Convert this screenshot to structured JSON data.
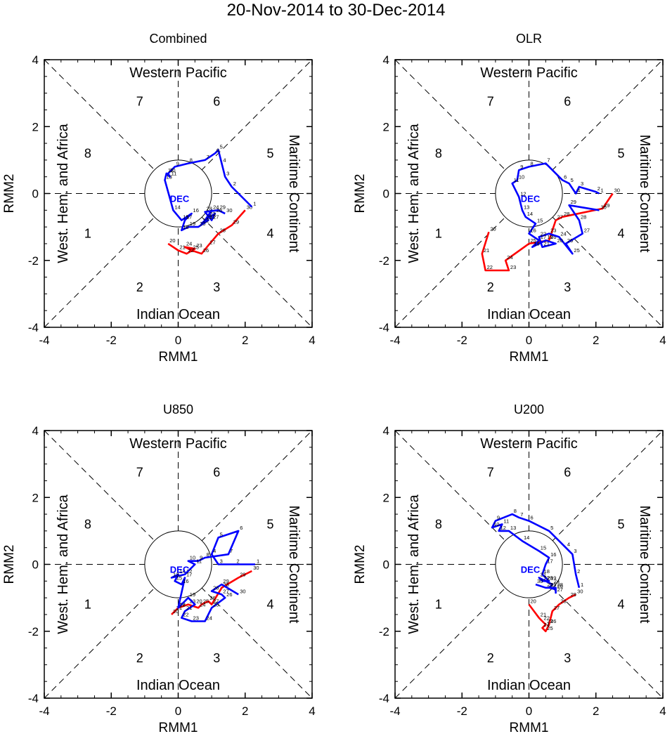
{
  "title": "20-Nov-2014 to 30-Dec-2014",
  "chart_data": [
    {
      "type": "line",
      "title": "Combined",
      "xlabel": "RMM1",
      "ylabel": "RMM2",
      "xlim": [
        -4,
        4
      ],
      "ylim": [
        -4,
        4
      ],
      "ticks": [
        "-4",
        "-2",
        "0",
        "2",
        "4"
      ],
      "regions": {
        "top": "Western Pacific",
        "bottom": "Indian Ocean",
        "left": "West. Hem. and Africa",
        "right": "Maritime Continent"
      },
      "phases": [
        "1",
        "2",
        "3",
        "4",
        "5",
        "6",
        "7",
        "8"
      ],
      "month_label": "DEC",
      "series": [
        {
          "name": "Nov",
          "color": "#ff0000",
          "days": [
            "20",
            "21",
            "22",
            "23",
            "24",
            "25",
            "26",
            "27",
            "28",
            "29",
            "30"
          ],
          "x": [
            -0.3,
            0.0,
            0.25,
            0.5,
            0.2,
            0.4,
            0.7,
            0.9,
            1.2,
            1.6,
            2.0
          ],
          "y": [
            -1.5,
            -1.7,
            -1.8,
            -1.65,
            -1.6,
            -1.7,
            -1.8,
            -1.55,
            -1.2,
            -0.95,
            -0.5
          ]
        },
        {
          "name": "Dec",
          "color": "#0000ff",
          "days": [
            "1",
            "2",
            "3",
            "4",
            "5",
            "6",
            "7",
            "8",
            "9",
            "10",
            "11",
            "12",
            "13",
            "14",
            "15",
            "16",
            "17",
            "18",
            "19",
            "20",
            "21",
            "22",
            "23",
            "24",
            "25",
            "26",
            "27",
            "28",
            "29",
            "30"
          ],
          "x": [
            2.2,
            1.6,
            1.4,
            1.3,
            1.2,
            1.1,
            0.8,
            0.3,
            -0.1,
            -0.3,
            -0.25,
            -0.35,
            -0.4,
            -0.15,
            0.1,
            0.4,
            0.2,
            0.1,
            0.3,
            0.6,
            0.9,
            0.7,
            0.9,
            1.0,
            0.8,
            1.1,
            1.0,
            0.8,
            1.2,
            1.4
          ],
          "y": [
            -0.4,
            0.2,
            0.5,
            0.9,
            1.3,
            1.2,
            1.0,
            0.9,
            0.8,
            0.6,
            0.5,
            0.6,
            0.4,
            -0.5,
            -0.8,
            -0.6,
            -0.8,
            -1.1,
            -1.0,
            -1.0,
            -0.8,
            -0.9,
            -0.7,
            -0.5,
            -0.8,
            -0.6,
            -0.8,
            -0.55,
            -0.5,
            -0.6
          ]
        }
      ]
    },
    {
      "type": "line",
      "title": "OLR",
      "xlabel": "RMM1",
      "ylabel": "RMM2",
      "xlim": [
        -4,
        4
      ],
      "ylim": [
        -4,
        4
      ],
      "ticks": [
        "-4",
        "-2",
        "0",
        "2",
        "4"
      ],
      "regions": {
        "top": "Western Pacific",
        "bottom": "Indian Ocean",
        "left": "West. Hem. and Africa",
        "right": "Maritime Continent"
      },
      "phases": [
        "1",
        "2",
        "3",
        "4",
        "5",
        "6",
        "7",
        "8"
      ],
      "month_label": "DEC",
      "series": [
        {
          "name": "Nov",
          "color": "#ff0000",
          "days": [
            "20",
            "21",
            "22",
            "23",
            "24",
            "25",
            "26",
            "27",
            "28",
            "29",
            "30"
          ],
          "x": [
            -1.2,
            -1.4,
            -1.3,
            -0.6,
            -0.7,
            0.0,
            0.6,
            0.8,
            1.0,
            2.2,
            2.5
          ],
          "y": [
            -1.15,
            -1.8,
            -2.3,
            -2.3,
            -2.0,
            -1.5,
            -1.4,
            -0.8,
            -0.7,
            -0.45,
            0.0
          ]
        },
        {
          "name": "Dec",
          "color": "#0000ff",
          "days": [
            "1",
            "2",
            "3",
            "4",
            "5",
            "6",
            "7",
            "8",
            "9",
            "10",
            "11",
            "12",
            "13",
            "14",
            "15",
            "16",
            "17",
            "18",
            "19",
            "20",
            "21",
            "22",
            "23",
            "24",
            "25",
            "26",
            "27",
            "28",
            "29",
            "30"
          ],
          "x": [
            2.1,
            2.0,
            1.5,
            1.4,
            1.2,
            1.0,
            0.5,
            0.0,
            -0.3,
            -0.35,
            -0.5,
            -0.3,
            -0.2,
            -0.1,
            0.2,
            0.0,
            0.3,
            0.1,
            0.5,
            0.8,
            0.4,
            0.3,
            0.6,
            0.9,
            1.3,
            1.1,
            1.6,
            1.5,
            1.2,
            2.1
          ],
          "y": [
            0.0,
            0.05,
            0.2,
            0.0,
            0.3,
            0.4,
            0.9,
            0.8,
            0.7,
            0.4,
            0.3,
            -0.1,
            -0.5,
            -0.7,
            -0.9,
            -1.2,
            -1.4,
            -1.6,
            -1.4,
            -1.5,
            -1.6,
            -1.3,
            -1.2,
            -1.3,
            -1.8,
            -1.5,
            -1.2,
            -0.8,
            -0.35,
            -0.5
          ]
        }
      ]
    },
    {
      "type": "line",
      "title": "U850",
      "xlabel": "RMM1",
      "ylabel": "RMM2",
      "xlim": [
        -4,
        4
      ],
      "ylim": [
        -4,
        4
      ],
      "ticks": [
        "-4",
        "-2",
        "0",
        "2",
        "4"
      ],
      "regions": {
        "top": "Western Pacific",
        "bottom": "Indian Ocean",
        "left": "West. Hem. and Africa",
        "right": "Maritime Continent"
      },
      "phases": [
        "1",
        "2",
        "3",
        "4",
        "5",
        "6",
        "7",
        "8"
      ],
      "month_label": "DEC",
      "series": [
        {
          "name": "Nov",
          "color": "#ff0000",
          "days": [
            "20",
            "21",
            "22",
            "23",
            "24",
            "25",
            "26",
            "27",
            "28",
            "29",
            "30"
          ],
          "x": [
            -0.2,
            -0.1,
            0.0,
            0.3,
            0.6,
            0.7,
            0.9,
            1.0,
            1.3,
            1.8,
            2.2
          ],
          "y": [
            -1.5,
            -1.4,
            -1.3,
            -1.2,
            -1.3,
            -1.2,
            -1.1,
            -1.2,
            -0.7,
            -0.4,
            -0.2
          ]
        },
        {
          "name": "Dec",
          "color": "#0000ff",
          "days": [
            "1",
            "2",
            "3",
            "4",
            "5",
            "6",
            "7",
            "8",
            "9",
            "10",
            "11",
            "12",
            "13",
            "14",
            "15",
            "16",
            "17",
            "18",
            "19",
            "20",
            "21",
            "22",
            "23",
            "24",
            "25",
            "26",
            "27",
            "28",
            "29",
            "30"
          ],
          "x": [
            2.3,
            1.7,
            1.2,
            1.0,
            1.2,
            1.8,
            1.5,
            0.8,
            0.6,
            0.3,
            0.5,
            0.2,
            -0.2,
            0.0,
            -0.1,
            0.1,
            0.2,
            0.0,
            0.3,
            0.5,
            0.2,
            0.1,
            0.4,
            0.8,
            1.0,
            1.4,
            1.3,
            1.0,
            1.3,
            1.8
          ],
          "y": [
            0.0,
            0.0,
            0.0,
            0.3,
            0.8,
            1.0,
            0.3,
            0.2,
            0.1,
            0.1,
            0.0,
            -0.3,
            -0.4,
            -0.3,
            -0.5,
            -0.6,
            -0.4,
            -1.3,
            -1.0,
            -1.2,
            -1.4,
            -1.6,
            -1.7,
            -1.7,
            -1.3,
            -1.0,
            -0.9,
            -0.8,
            -0.6,
            -0.9
          ]
        }
      ]
    },
    {
      "type": "line",
      "title": "U200",
      "xlabel": "RMM1",
      "ylabel": "RMM2",
      "xlim": [
        -4,
        4
      ],
      "ylim": [
        -4,
        4
      ],
      "ticks": [
        "-4",
        "-2",
        "0",
        "2",
        "4"
      ],
      "regions": {
        "top": "Western Pacific",
        "bottom": "Indian Ocean",
        "left": "West. Hem. and Africa",
        "right": "Maritime Continent"
      },
      "phases": [
        "1",
        "2",
        "3",
        "4",
        "5",
        "6",
        "7",
        "8"
      ],
      "month_label": "DEC",
      "series": [
        {
          "name": "Nov",
          "color": "#ff0000",
          "days": [
            "20",
            "21",
            "22",
            "23",
            "24",
            "25",
            "26",
            "27",
            "28",
            "29",
            "30"
          ],
          "x": [
            0.0,
            0.3,
            0.4,
            0.5,
            0.4,
            0.5,
            0.6,
            0.7,
            0.9,
            1.2,
            1.4
          ],
          "y": [
            -1.2,
            -1.6,
            -1.7,
            -1.8,
            -1.9,
            -2.0,
            -1.8,
            -1.4,
            -1.2,
            -1.0,
            -0.9
          ]
        },
        {
          "name": "Dec",
          "color": "#0000ff",
          "days": [
            "1",
            "2",
            "3",
            "4",
            "5",
            "6",
            "7",
            "8",
            "9",
            "10",
            "11",
            "12",
            "13",
            "14",
            "15",
            "16",
            "17",
            "18",
            "19",
            "20",
            "21",
            "22",
            "23",
            "24",
            "25",
            "26",
            "27",
            "28",
            "29",
            "30"
          ],
          "x": [
            1.5,
            1.4,
            1.3,
            1.1,
            0.6,
            0.0,
            -0.3,
            -0.5,
            -1.0,
            -1.1,
            -0.8,
            -0.9,
            -0.6,
            -0.2,
            0.3,
            0.6,
            0.5,
            0.4,
            0.6,
            0.5,
            0.3,
            0.4,
            0.5,
            0.7,
            0.6,
            0.8,
            0.8,
            0.8,
            0.5,
            0.2
          ],
          "y": [
            -0.7,
            -0.3,
            0.3,
            0.5,
            1.0,
            1.3,
            1.4,
            1.5,
            1.3,
            1.1,
            1.2,
            1.0,
            1.0,
            0.7,
            0.4,
            0.2,
            0.0,
            -0.3,
            -0.5,
            -0.5,
            -0.4,
            -0.5,
            -0.5,
            -0.6,
            -0.7,
            -0.75,
            -0.85,
            -0.7,
            -0.7,
            -0.6
          ]
        }
      ]
    }
  ]
}
